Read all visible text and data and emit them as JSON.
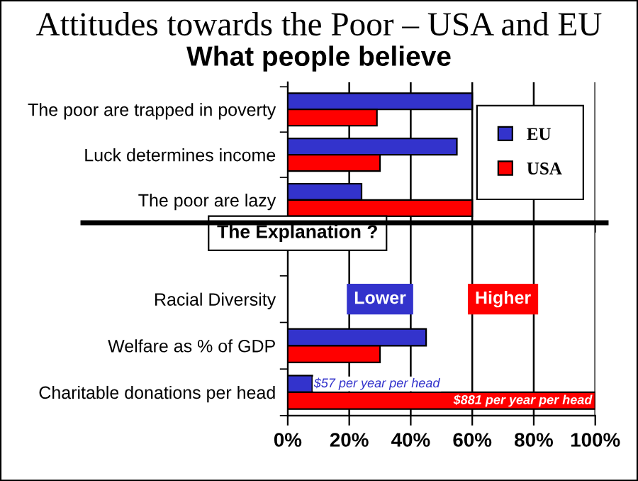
{
  "chart_data": [
    {
      "type": "bar",
      "orientation": "horizontal",
      "title": "Attitudes towards the Poor – USA and EU",
      "subtitle": "What people believe",
      "categories": [
        "The poor are trapped in poverty",
        "Luck determines income",
        "The poor are lazy"
      ],
      "series": [
        {
          "name": "EU",
          "color": "#3333cc",
          "values": [
            60,
            55,
            24
          ]
        },
        {
          "name": "USA",
          "color": "#ff0000",
          "values": [
            29,
            30,
            60
          ]
        }
      ],
      "xlim": [
        0,
        100
      ],
      "xticks": [
        {
          "value": 0,
          "label": null
        },
        {
          "value": 20,
          "label": null
        },
        {
          "value": 40,
          "label": null
        },
        {
          "value": 60,
          "label": null
        },
        {
          "value": 80,
          "label": null
        },
        {
          "value": 100,
          "label": null
        }
      ],
      "grid": "x",
      "legend": "right",
      "tick_labels": "y"
    },
    {
      "type": "bar",
      "orientation": "horizontal",
      "categories": [
        "Racial Diversity",
        "Welfare as % of GDP",
        "Charitable donations per head"
      ],
      "series": [
        {
          "color": "#3333cc",
          "values": [
            null,
            45,
            8
          ]
        },
        {
          "color": "#ff0000",
          "values": [
            null,
            30,
            100
          ]
        }
      ],
      "xlim": [
        0,
        100
      ],
      "xticks": [
        {
          "value": 0,
          "label": "0%"
        },
        {
          "value": 20,
          "label": "20%"
        },
        {
          "value": 40,
          "label": "40%"
        },
        {
          "value": 60,
          "label": "60%"
        },
        {
          "value": 80,
          "label": "80%"
        },
        {
          "value": 100,
          "label": "100%"
        }
      ],
      "grid": "x",
      "annotations": [
        "The Explanation ?",
        "Lower",
        "Higher",
        {
          "text": "$57 per year per head",
          "x": 8,
          "y": "Charitable donations per head"
        },
        {
          "text": "$881 per year per head",
          "x": 100,
          "y": "Charitable donations per head"
        }
      ]
    }
  ]
}
